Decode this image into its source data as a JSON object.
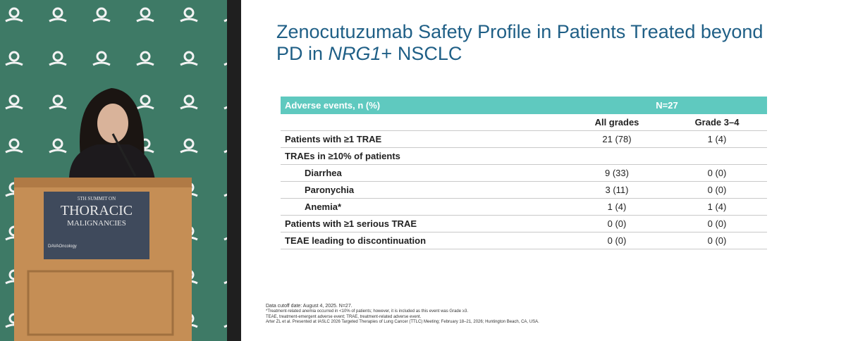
{
  "podium": {
    "line1": "5TH SUMMIT ON",
    "line2": "THORACIC",
    "line3": "MALIGNANCIES",
    "brand": "DAVAOncology"
  },
  "slide": {
    "title": [
      "Zenocutuzumab Safety Profile in Patients Treated beyond PD in ",
      "NRG1",
      "+ NSCLC"
    ],
    "table": {
      "header": [
        "Adverse events, n (%)",
        "N=27"
      ],
      "columns": [
        "All grades",
        "Grade 3–4"
      ],
      "rows": [
        {
          "label": "Patients with ≥1 TRAE",
          "values": [
            "21 (78)",
            "1 (4)"
          ]
        },
        {
          "label": "TRAEs in ≥10% of patients",
          "sub": [
            {
              "label": "Diarrhea",
              "values": [
                "9 (33)",
                "0 (0)"
              ]
            },
            {
              "label": "Paronychia",
              "values": [
                "3 (11)",
                "0 (0)"
              ]
            },
            {
              "label": "Anemia*",
              "values": [
                "1 (4)",
                "1 (4)"
              ]
            }
          ]
        },
        {
          "label": "Patients with ≥1 serious TRAE",
          "values": [
            "0 (0)",
            "0 (0)"
          ]
        },
        {
          "label": "TEAE leading to discontinuation",
          "values": [
            "0 (0)",
            "0 (0)"
          ]
        }
      ]
    },
    "footnotes": [
      "Data cutoff date: August 4, 2025. N=27.",
      "*Treatment-related anemia occurred in <10% of patients; however, it is included as this event was Grade ≥3.",
      "TEAE, treatment-emergent adverse event; TRAE, treatment-related adverse event.",
      "Arter ZL et al. Presented at IASLC 2026 Targeted Therapies of Lung Cancer (TTLC) Meeting; February 18–21, 2026; Huntington Beach, CA, USA."
    ]
  }
}
